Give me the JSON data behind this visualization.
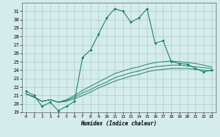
{
  "xlabel": "Humidex (Indice chaleur)",
  "background_color": "#d4ecea",
  "grid_color": "#aacccc",
  "line_color": "#1a7a6a",
  "xlim": [
    -0.5,
    23.5
  ],
  "ylim": [
    19,
    32
  ],
  "yticks": [
    19,
    20,
    21,
    22,
    23,
    24,
    25,
    26,
    27,
    28,
    29,
    30,
    31
  ],
  "xticks": [
    0,
    1,
    2,
    3,
    4,
    5,
    6,
    7,
    8,
    9,
    10,
    11,
    12,
    13,
    14,
    15,
    16,
    17,
    18,
    19,
    20,
    21,
    22,
    23
  ],
  "series": [
    [
      21.5,
      21.0,
      19.7,
      20.2,
      19.2,
      19.7,
      20.3,
      25.5,
      26.4,
      28.3,
      30.2,
      31.3,
      31.0,
      29.7,
      30.2,
      31.3,
      27.2,
      27.5,
      25.0,
      24.8,
      24.7,
      24.2,
      23.8,
      24.0
    ],
    [
      21.2,
      20.8,
      20.3,
      20.5,
      20.2,
      20.3,
      20.6,
      21.0,
      21.4,
      21.9,
      22.3,
      22.7,
      23.0,
      23.3,
      23.5,
      23.8,
      24.0,
      24.1,
      24.2,
      24.2,
      24.2,
      24.1,
      24.0,
      23.9
    ],
    [
      21.2,
      20.8,
      20.3,
      20.5,
      20.2,
      20.4,
      20.8,
      21.3,
      21.7,
      22.2,
      22.6,
      23.1,
      23.4,
      23.7,
      23.9,
      24.2,
      24.4,
      24.5,
      24.6,
      24.6,
      24.5,
      24.4,
      24.3,
      24.2
    ],
    [
      21.2,
      20.8,
      20.3,
      20.5,
      20.2,
      20.5,
      21.0,
      21.6,
      22.1,
      22.6,
      23.1,
      23.6,
      23.9,
      24.2,
      24.4,
      24.7,
      24.9,
      25.0,
      25.1,
      25.0,
      24.9,
      24.8,
      24.6,
      24.4
    ]
  ]
}
